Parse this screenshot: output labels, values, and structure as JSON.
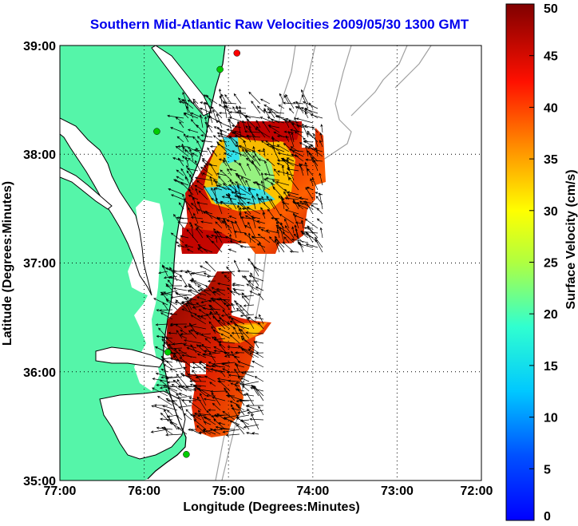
{
  "title": "Southern Mid-Atlantic Raw Velocities 2009/05/30 1300 GMT",
  "map": {
    "xlabel": "Longitude (Degrees:Minutes)",
    "ylabel": "Latitude (Degrees:Minutes)",
    "lon_range": [
      -77,
      -72
    ],
    "lat_range": [
      35,
      39
    ],
    "x_ticks": [
      "77:00",
      "76:00",
      "75:00",
      "74:00",
      "73:00",
      "72:00"
    ],
    "y_ticks": [
      "39:00",
      "38:00",
      "37:00",
      "36:00",
      "35:00"
    ],
    "grid": "dotted",
    "land_color": "#55f5a9",
    "water_color": "#ffffff",
    "coastline_color": "#000000",
    "bathymetry_color": "#a0a0a0",
    "vector_color": "#000000",
    "station_markers": [
      {
        "lon": -74.9,
        "lat": 38.93,
        "color": "#ff0000"
      },
      {
        "lon": -75.1,
        "lat": 38.78,
        "color": "#00cc00"
      },
      {
        "lon": -75.85,
        "lat": 38.21,
        "color": "#00cc00"
      },
      {
        "lon": -75.72,
        "lat": 36.18,
        "color": "#00cc00"
      },
      {
        "lon": -75.5,
        "lat": 35.24,
        "color": "#00cc00"
      }
    ]
  },
  "colorbar": {
    "label": "Surface Velocity (cm/s)",
    "min": 0,
    "max": 50,
    "ticks": [
      "0",
      "5",
      "10",
      "15",
      "20",
      "25",
      "30",
      "35",
      "40",
      "45",
      "50"
    ],
    "colormap": "jet"
  }
}
